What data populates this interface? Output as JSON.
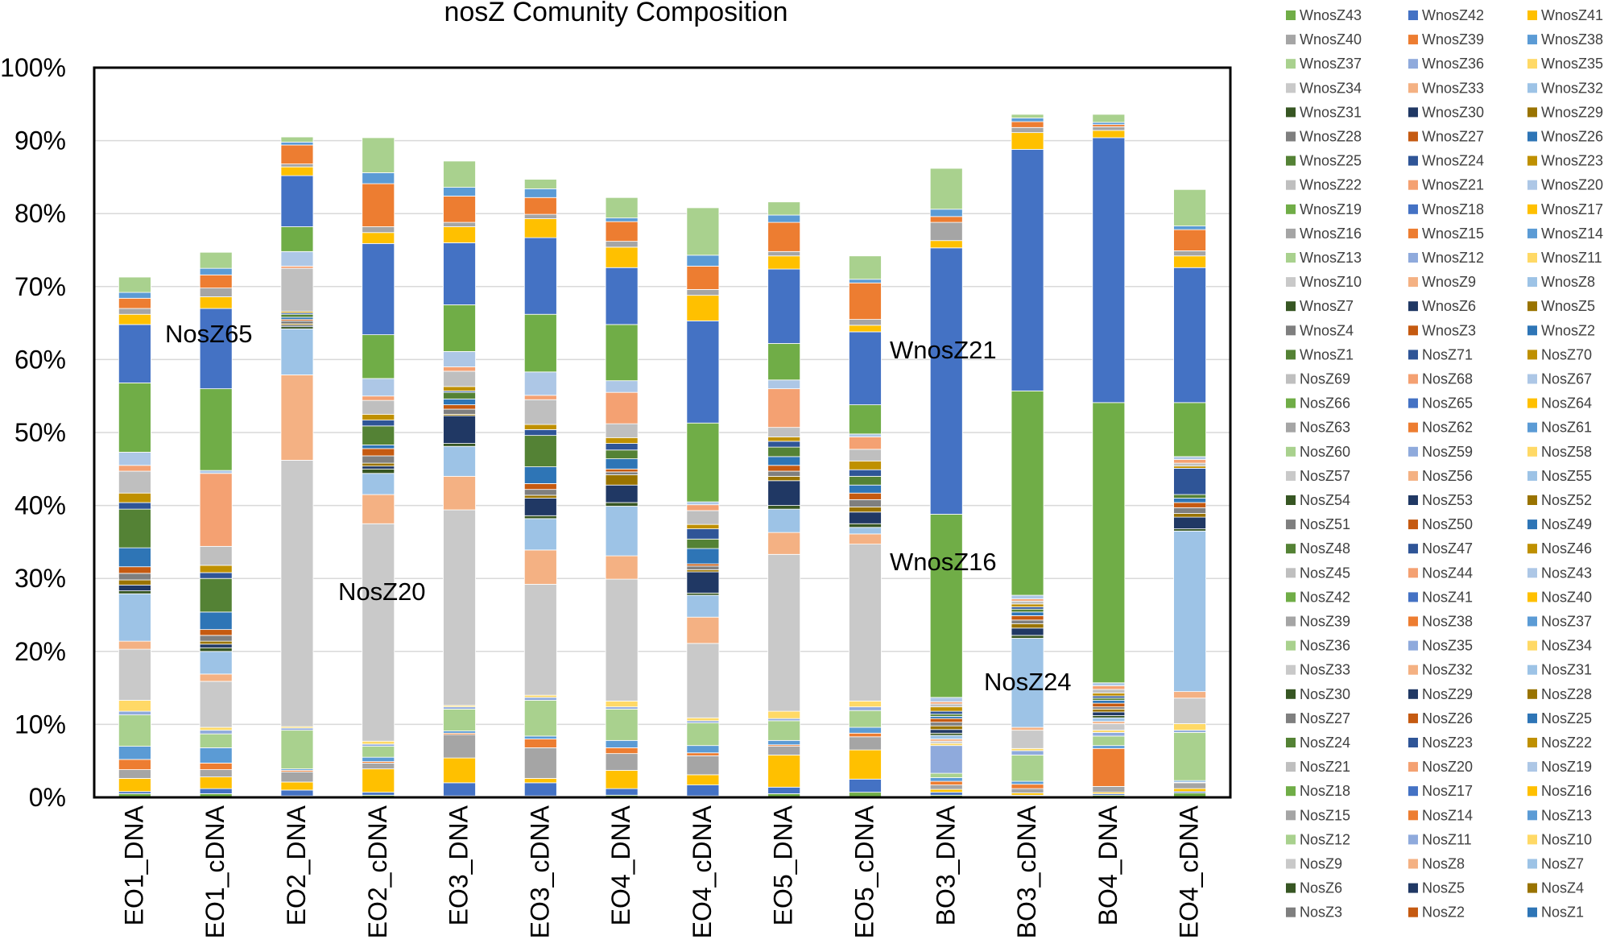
{
  "chart_data": {
    "type": "bar",
    "stacked": true,
    "title": "nosZ Comunity Composition",
    "xlabel": "",
    "ylabel": "",
    "ylim": [
      0,
      100
    ],
    "y_ticks": [
      "0%",
      "10%",
      "20%",
      "30%",
      "40%",
      "50%",
      "60%",
      "70%",
      "80%",
      "90%",
      "100%"
    ],
    "categories": [
      "EO1_DNA",
      "EO1_cDNA",
      "EO2_DNA",
      "EO2_cDNA",
      "EO3_DNA",
      "EO3_cDNA",
      "EO4_DNA",
      "EO4_cDNA",
      "EO5_DNA",
      "EO5_cDNA",
      "BO3_DNA",
      "BO3_cDNA",
      "BO4_DNA",
      "EO4_cDNA"
    ],
    "legend_position": "right",
    "legend": [
      "WnosZ43",
      "WnosZ42",
      "WnosZ41",
      "WnosZ40",
      "WnosZ39",
      "WnosZ38",
      "WnosZ37",
      "WnosZ36",
      "WnosZ35",
      "WnosZ34",
      "WnosZ33",
      "WnosZ32",
      "WnosZ31",
      "WnosZ30",
      "WnosZ29",
      "WnosZ28",
      "WnosZ27",
      "WnosZ26",
      "WnosZ25",
      "WnosZ24",
      "WnosZ23",
      "WnosZ22",
      "WnosZ21",
      "WnosZ20",
      "WnosZ19",
      "WnosZ18",
      "WnosZ17",
      "WnosZ16",
      "WnosZ15",
      "WnosZ14",
      "WnosZ13",
      "WnosZ12",
      "WnosZ11",
      "WnosZ10",
      "WnosZ9",
      "WnosZ8",
      "WnosZ7",
      "WnosZ6",
      "WnosZ5",
      "WnosZ4",
      "WnosZ3",
      "WnosZ2",
      "WnosZ1",
      "NosZ71",
      "NosZ70",
      "NosZ69",
      "NosZ68",
      "NosZ67",
      "NosZ66",
      "NosZ65",
      "NosZ64",
      "NosZ63",
      "NosZ62",
      "NosZ61",
      "NosZ60",
      "NosZ59",
      "NosZ58",
      "NosZ57",
      "NosZ56",
      "NosZ55",
      "NosZ54",
      "NosZ53",
      "NosZ52",
      "NosZ51",
      "NosZ50",
      "NosZ49",
      "NosZ48",
      "NosZ47",
      "NosZ46",
      "NosZ45",
      "NosZ44",
      "NosZ43",
      "NosZ42",
      "NosZ41",
      "NosZ40",
      "NosZ39",
      "NosZ38",
      "NosZ37",
      "NosZ36",
      "NosZ35",
      "NosZ34",
      "NosZ33",
      "NosZ32",
      "NosZ31",
      "NosZ30",
      "NosZ29",
      "NosZ28",
      "NosZ27",
      "NosZ26",
      "NosZ25",
      "NosZ24",
      "NosZ23",
      "NosZ22",
      "NosZ21",
      "NosZ20",
      "NosZ19",
      "NosZ18",
      "NosZ17",
      "NosZ16",
      "NosZ15",
      "NosZ14",
      "NosZ13",
      "NosZ12",
      "NosZ11",
      "NosZ10",
      "NosZ9",
      "NosZ8",
      "NosZ7",
      "NosZ6",
      "NosZ5",
      "NosZ4",
      "NosZ3",
      "NosZ2",
      "NosZ1"
    ],
    "palette": [
      "#70ad47",
      "#4472c4",
      "#ffc000",
      "#a5a5a5",
      "#ed7d31",
      "#5b9bd5",
      "#a9d18e",
      "#8faadc",
      "#ffd966",
      "#c9c9c9",
      "#f4b183",
      "#9dc3e6",
      "#375623",
      "#203864",
      "#997300",
      "#7f7f7f",
      "#c55a11",
      "#2e75b6",
      "#548235",
      "#2f5597",
      "#bf9000",
      "#bfbfbf",
      "#f4a172",
      "#adc7e6"
    ],
    "series": [
      {
        "name": "NosZ3",
        "values": [
          0.5,
          0.5,
          0.2,
          0.3,
          0.2,
          0.2,
          0.3,
          0.2,
          0.5,
          0.7,
          0.3,
          0.2,
          0.3,
          0.6
        ]
      },
      {
        "name": "NosZ4",
        "values": [
          0.3,
          0.7,
          0.8,
          0.4,
          1.8,
          1.8,
          0.9,
          1.5,
          0.9,
          1.8,
          0.4,
          0.1,
          0.2,
          0.2
        ]
      },
      {
        "name": "NosZ6",
        "values": [
          1.8,
          1.6,
          1.1,
          3.2,
          3.4,
          0.6,
          2.5,
          1.4,
          4.4,
          4.0,
          0.4,
          0.3,
          0.2,
          0.4
        ]
      },
      {
        "name": "NosZ9",
        "values": [
          1.2,
          1.0,
          1.4,
          0.8,
          3.2,
          4.2,
          2.3,
          2.6,
          1.2,
          1.8,
          0.6,
          0.6,
          0.8,
          0.8
        ]
      },
      {
        "name": "NosZ12",
        "values": [
          1.4,
          0.9,
          0.2,
          0.2,
          0.2,
          1.2,
          0.8,
          0.4,
          0.2,
          0.5,
          0.5,
          0.6,
          5.2,
          0.1
        ]
      },
      {
        "name": "NosZ14",
        "values": [
          1.8,
          2.1,
          0.2,
          0.6,
          0.3,
          0.4,
          1.0,
          1.0,
          0.6,
          0.8,
          0.5,
          0.4,
          0.4,
          0.2
        ]
      },
      {
        "name": "NosZ15",
        "values": [
          4.3,
          1.9,
          5.3,
          1.5,
          3.0,
          4.9,
          4.3,
          3.1,
          2.7,
          2.3,
          0.6,
          3.6,
          1.3,
          6.6
        ]
      },
      {
        "name": "NosZ16",
        "values": [
          0.5,
          0.5,
          0.3,
          0.3,
          0.3,
          0.4,
          0.3,
          0.3,
          0.3,
          0.5,
          3.8,
          0.6,
          0.5,
          0.3
        ]
      },
      {
        "name": "NosZ17",
        "values": [
          1.5,
          0.4,
          0.2,
          0.4,
          0.2,
          0.3,
          0.8,
          0.4,
          1.0,
          0.8,
          0.3,
          0.3,
          0.3,
          0.9
        ]
      },
      {
        "name": "NosZ20",
        "values": [
          7.0,
          6.3,
          36.5,
          29.8,
          26.8,
          15.2,
          16.7,
          10.2,
          21.5,
          21.5,
          0.3,
          2.5,
          0.9,
          3.5
        ]
      },
      {
        "name": "NosZ23",
        "values": [
          1.1,
          1.0,
          11.7,
          4.0,
          4.6,
          4.7,
          3.2,
          3.6,
          3.0,
          1.4,
          0.3,
          0.4,
          0.3,
          0.9
        ]
      },
      {
        "name": "NosZ24",
        "values": [
          6.5,
          3.1,
          6.3,
          2.9,
          4.1,
          4.3,
          6.8,
          3.0,
          3.2,
          0.9,
          0.5,
          12.2,
          0.5,
          22.0
        ]
      },
      {
        "name": "NosZ27",
        "values": [
          0.4,
          0.5,
          0.3,
          0.6,
          0.4,
          0.4,
          0.5,
          0.3,
          0.5,
          0.5,
          0.3,
          0.4,
          0.3,
          0.3
        ]
      },
      {
        "name": "NosZ31",
        "values": [
          0.8,
          0.5,
          0.2,
          0.4,
          3.8,
          2.4,
          2.4,
          2.9,
          3.4,
          1.6,
          0.5,
          1.0,
          0.5,
          1.6
        ]
      },
      {
        "name": "NosZ35",
        "values": [
          0.7,
          0.4,
          0.2,
          0.4,
          0.2,
          0.4,
          1.4,
          0.3,
          0.6,
          0.7,
          0.5,
          0.6,
          0.4,
          0.5
        ]
      },
      {
        "name": "NosZ38",
        "values": [
          0.9,
          0.8,
          0.4,
          1.0,
          0.7,
          0.8,
          0.4,
          0.5,
          0.7,
          1.0,
          0.5,
          0.5,
          0.3,
          0.8
        ]
      },
      {
        "name": "NosZ40",
        "values": [
          0.9,
          0.8,
          0.2,
          1.0,
          0.6,
          0.8,
          0.4,
          0.3,
          0.8,
          0.9,
          0.5,
          0.6,
          0.5,
          0.7
        ]
      },
      {
        "name": "NosZ53",
        "values": [
          2.6,
          2.4,
          0.3,
          0.5,
          0.8,
          2.3,
          1.4,
          2.1,
          1.2,
          1.1,
          0.3,
          0.5,
          0.4,
          0.6
        ]
      },
      {
        "name": "NosZ54",
        "values": [
          5.3,
          4.6,
          0.4,
          2.6,
          0.9,
          4.3,
          1.2,
          1.3,
          1.3,
          1.2,
          0.3,
          0.4,
          0.3,
          0.5
        ]
      },
      {
        "name": "NosZ58",
        "values": [
          0.9,
          0.8,
          0.2,
          0.8,
          0.2,
          0.8,
          0.9,
          1.4,
          0.8,
          0.9,
          0.4,
          0.3,
          0.3,
          3.6
        ]
      },
      {
        "name": "NosZ61",
        "values": [
          1.3,
          1.0,
          0.2,
          0.8,
          0.6,
          0.7,
          0.8,
          0.6,
          0.6,
          1.2,
          0.6,
          0.4,
          0.4,
          0.3
        ]
      },
      {
        "name": "NosZ63",
        "values": [
          3.0,
          2.6,
          5.9,
          1.9,
          2.1,
          3.4,
          1.9,
          1.9,
          1.3,
          1.6,
          0.4,
          0.4,
          0.5,
          0.4
        ]
      },
      {
        "name": "NosZ65",
        "values": [
          0.8,
          10.0,
          0.3,
          0.6,
          0.6,
          0.6,
          4.3,
          0.8,
          5.3,
          1.7,
          0.3,
          0.3,
          0.5,
          0.5
        ]
      },
      {
        "name": "NosZ66",
        "values": [
          1.8,
          0.4,
          2.0,
          2.4,
          2.1,
          3.2,
          1.6,
          0.4,
          1.2,
          0.4,
          0.6,
          0.5,
          0.4,
          0.4
        ]
      },
      {
        "name": "WnosZ16",
        "values": [
          9.5,
          11.2,
          3.4,
          6.0,
          6.4,
          7.9,
          7.7,
          10.8,
          5.0,
          4.0,
          25.1,
          28.0,
          38.4,
          7.4
        ]
      },
      {
        "name": "WnosZ21",
        "values": [
          8.0,
          11.0,
          7.0,
          12.5,
          8.5,
          10.5,
          7.8,
          14.0,
          10.2,
          10.0,
          36.5,
          33.1,
          36.3,
          18.5
        ]
      },
      {
        "name": "WnosZ26",
        "values": [
          1.4,
          1.6,
          1.2,
          1.5,
          2.2,
          2.6,
          2.8,
          3.5,
          1.8,
          0.9,
          1.0,
          2.3,
          1.0,
          1.6
        ]
      },
      {
        "name": "WnosZ33",
        "values": [
          0.8,
          1.2,
          0.4,
          0.8,
          0.6,
          0.6,
          0.8,
          0.8,
          0.6,
          0.8,
          2.5,
          0.7,
          0.5,
          0.7
        ]
      },
      {
        "name": "WnosZ41",
        "values": [
          1.4,
          1.8,
          2.6,
          5.9,
          3.6,
          2.3,
          2.7,
          3.2,
          4.0,
          5.0,
          0.8,
          0.8,
          0.3,
          2.9
        ]
      },
      {
        "name": "WnosZ38",
        "values": [
          0.8,
          0.9,
          0.4,
          1.5,
          1.2,
          1.2,
          0.5,
          1.5,
          1.0,
          0.5,
          1.0,
          0.5,
          0.3,
          0.5
        ]
      },
      {
        "name": "WnosZ43",
        "values": [
          2.1,
          2.2,
          0.7,
          4.8,
          3.6,
          1.3,
          2.8,
          6.5,
          1.8,
          3.2,
          5.6,
          0.5,
          1.1,
          5.0
        ]
      }
    ],
    "annotations": [
      "NosZ65",
      "NosZ20",
      "WnosZ21",
      "WnosZ16",
      "NosZ24"
    ]
  }
}
